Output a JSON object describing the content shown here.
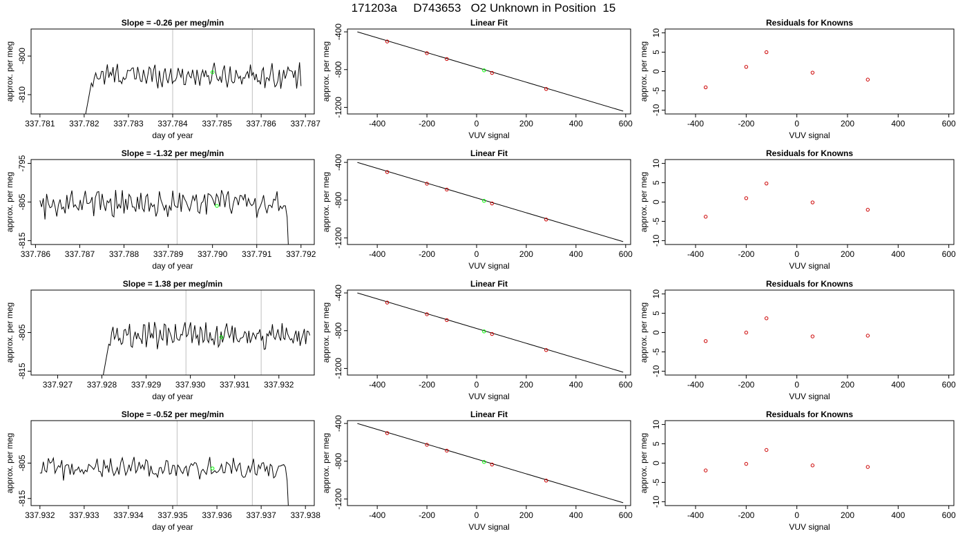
{
  "title": "171203a     D743653   O2 Unknown in Position  15",
  "colors": {
    "trace": "#000000",
    "vline": "#bfbfbf",
    "green": "#00ff00",
    "red": "#cc0000"
  },
  "chart_data": [
    {
      "type": "line",
      "row": 0,
      "title": "Slope =  -0.26  per meg/min",
      "xlabel": "day of year",
      "ylabel": "approx. per meg",
      "xlim": [
        337.7808,
        337.7872
      ],
      "xticks": [
        337.781,
        337.782,
        337.783,
        337.784,
        337.785,
        337.786,
        337.787
      ],
      "xtick_labels": [
        "337.781",
        "337.782",
        "337.783",
        "337.784",
        "337.785",
        "337.786",
        "337.787"
      ],
      "ylim": [
        -815,
        -793
      ],
      "yticks": [
        -810,
        -800
      ],
      "ytick_labels": [
        "-810",
        "-800"
      ],
      "vlines": [
        337.784,
        337.7858
      ],
      "x_start": 337.782,
      "x_end": 337.7869,
      "baseline": -805,
      "amplitude": 2.5,
      "entry": "drop-in",
      "green_point": {
        "x": 337.7849,
        "y": -804.2
      }
    },
    {
      "type": "scatter",
      "row": 0,
      "title": "Linear Fit",
      "xlabel": "VUV signal",
      "ylabel": "approx. per meg",
      "xlim": [
        -520,
        620
      ],
      "xticks": [
        -400,
        -200,
        0,
        200,
        400,
        600
      ],
      "xtick_labels": [
        "-400",
        "-200",
        "0",
        "200",
        "400",
        "600"
      ],
      "ylim": [
        -1270,
        -370
      ],
      "yticks": [
        -1200,
        -800,
        -400
      ],
      "ytick_labels": [
        "-1200",
        "-800",
        "-400"
      ],
      "fit_line": {
        "x": [
          -480,
          590
        ],
        "y": [
          -400,
          -1240
        ]
      },
      "points": [
        {
          "x": -360,
          "y": -502
        },
        {
          "x": -200,
          "y": -626
        },
        {
          "x": -120,
          "y": -688
        },
        {
          "x": 62,
          "y": -835
        },
        {
          "x": 280,
          "y": -1005
        }
      ],
      "green_point": {
        "x": 30,
        "y": -808
      }
    },
    {
      "type": "scatter",
      "row": 0,
      "title": "Residuals for Knowns",
      "xlabel": "VUV signal",
      "ylabel": "approx. per meg",
      "xlim": [
        -520,
        620
      ],
      "xticks": [
        -400,
        -200,
        0,
        200,
        400,
        600
      ],
      "xtick_labels": [
        "-400",
        "-200",
        "0",
        "200",
        "400",
        "600"
      ],
      "ylim": [
        -11,
        11
      ],
      "yticks": [
        -10,
        -5,
        0,
        5,
        10
      ],
      "ytick_labels": [
        "-10",
        "-5",
        "0",
        "5",
        "10"
      ],
      "points": [
        {
          "x": -360,
          "y": -4.1
        },
        {
          "x": -200,
          "y": 1.2
        },
        {
          "x": -120,
          "y": 5.0
        },
        {
          "x": 62,
          "y": -0.3
        },
        {
          "x": 280,
          "y": -2.1
        }
      ]
    },
    {
      "type": "line",
      "row": 1,
      "title": "Slope =  -1.32  per meg/min",
      "xlabel": "day of year",
      "ylabel": "approx. per meg",
      "xlim": [
        337.7859,
        337.7923
      ],
      "xticks": [
        337.786,
        337.787,
        337.788,
        337.789,
        337.79,
        337.791,
        337.792
      ],
      "xtick_labels": [
        "337.786",
        "337.787",
        "337.788",
        "337.789",
        "337.790",
        "337.791",
        "337.792"
      ],
      "ylim": [
        -816,
        -794
      ],
      "yticks": [
        -815,
        -805,
        -795
      ],
      "ytick_labels": [
        "-815",
        "-805",
        "-795"
      ],
      "vlines": [
        337.7892,
        337.791
      ],
      "x_start": 337.7861,
      "x_end": 337.7918,
      "baseline": -805.5,
      "amplitude": 3.0,
      "entry": "flat-drop",
      "green_point": {
        "x": 337.7901,
        "y": -806
      }
    },
    {
      "type": "scatter",
      "row": 1,
      "title": "Linear Fit",
      "xlabel": "VUV signal",
      "ylabel": "approx. per meg",
      "xlim": [
        -520,
        620
      ],
      "xticks": [
        -400,
        -200,
        0,
        200,
        400,
        600
      ],
      "xtick_labels": [
        "-400",
        "-200",
        "0",
        "200",
        "400",
        "600"
      ],
      "ylim": [
        -1270,
        -370
      ],
      "yticks": [
        -1200,
        -800,
        -400
      ],
      "ytick_labels": [
        "-1200",
        "-800",
        "-400"
      ],
      "fit_line": {
        "x": [
          -480,
          590
        ],
        "y": [
          -400,
          -1240
        ]
      },
      "points": [
        {
          "x": -360,
          "y": -502
        },
        {
          "x": -200,
          "y": -626
        },
        {
          "x": -120,
          "y": -688
        },
        {
          "x": 62,
          "y": -835
        },
        {
          "x": 280,
          "y": -1005
        }
      ],
      "green_point": {
        "x": 30,
        "y": -808
      }
    },
    {
      "type": "scatter",
      "row": 1,
      "title": "Residuals for Knowns",
      "xlabel": "VUV signal",
      "ylabel": "approx. per meg",
      "xlim": [
        -520,
        620
      ],
      "xticks": [
        -400,
        -200,
        0,
        200,
        400,
        600
      ],
      "xtick_labels": [
        "-400",
        "-200",
        "0",
        "200",
        "400",
        "600"
      ],
      "ylim": [
        -11,
        11
      ],
      "yticks": [
        -10,
        -5,
        0,
        5,
        10
      ],
      "ytick_labels": [
        "-10",
        "-5",
        "0",
        "5",
        "10"
      ],
      "points": [
        {
          "x": -360,
          "y": -3.8
        },
        {
          "x": -200,
          "y": 1.0
        },
        {
          "x": -120,
          "y": 4.8
        },
        {
          "x": 62,
          "y": -0.1
        },
        {
          "x": 280,
          "y": -2.0
        }
      ]
    },
    {
      "type": "line",
      "row": 2,
      "title": "Slope =  1.38  per meg/min",
      "xlabel": "day of year",
      "ylabel": "approx. per meg",
      "xlim": [
        337.9264,
        337.9328
      ],
      "xticks": [
        337.927,
        337.928,
        337.929,
        337.93,
        337.931,
        337.932
      ],
      "xtick_labels": [
        "337.927",
        "337.928",
        "337.929",
        "337.930",
        "337.931",
        "337.932"
      ],
      "ylim": [
        -816,
        -794
      ],
      "yticks": [
        -815,
        -805
      ],
      "ytick_labels": [
        "-815",
        "-805"
      ],
      "vlines": [
        337.9299,
        337.9316
      ],
      "x_start": 337.928,
      "x_end": 337.9327,
      "baseline": -806,
      "amplitude": 2.8,
      "entry": "drop-in",
      "green_point": {
        "x": 337.9307,
        "y": -806.2
      }
    },
    {
      "type": "scatter",
      "row": 2,
      "title": "Linear Fit",
      "xlabel": "VUV signal",
      "ylabel": "approx. per meg",
      "xlim": [
        -520,
        620
      ],
      "xticks": [
        -400,
        -200,
        0,
        200,
        400,
        600
      ],
      "xtick_labels": [
        "-400",
        "-200",
        "0",
        "200",
        "400",
        "600"
      ],
      "ylim": [
        -1270,
        -370
      ],
      "yticks": [
        -1200,
        -800,
        -400
      ],
      "ytick_labels": [
        "-1200",
        "-800",
        "-400"
      ],
      "fit_line": {
        "x": [
          -480,
          590
        ],
        "y": [
          -400,
          -1240
        ]
      },
      "points": [
        {
          "x": -360,
          "y": -502
        },
        {
          "x": -200,
          "y": -626
        },
        {
          "x": -120,
          "y": -688
        },
        {
          "x": 62,
          "y": -835
        },
        {
          "x": 280,
          "y": -1005
        }
      ],
      "green_point": {
        "x": 30,
        "y": -808
      }
    },
    {
      "type": "scatter",
      "row": 2,
      "title": "Residuals for Knowns",
      "xlabel": "VUV signal",
      "ylabel": "approx. per meg",
      "xlim": [
        -520,
        620
      ],
      "xticks": [
        -400,
        -200,
        0,
        200,
        400,
        600
      ],
      "xtick_labels": [
        "-400",
        "-200",
        "0",
        "200",
        "400",
        "600"
      ],
      "ylim": [
        -11,
        11
      ],
      "yticks": [
        -10,
        -5,
        0,
        5,
        10
      ],
      "ytick_labels": [
        "-10",
        "-5",
        "0",
        "5",
        "10"
      ],
      "points": [
        {
          "x": -360,
          "y": -2.2
        },
        {
          "x": -200,
          "y": 0.0
        },
        {
          "x": -120,
          "y": 3.7
        },
        {
          "x": 62,
          "y": -1.0
        },
        {
          "x": 280,
          "y": -0.8
        }
      ]
    },
    {
      "type": "line",
      "row": 3,
      "title": "Slope =  -0.52  per meg/min",
      "xlabel": "day of year",
      "ylabel": "approx. per meg",
      "xlim": [
        337.9318,
        337.9382
      ],
      "xticks": [
        337.932,
        337.933,
        337.934,
        337.935,
        337.936,
        337.937,
        337.938
      ],
      "xtick_labels": [
        "337.932",
        "337.933",
        "337.934",
        "337.935",
        "337.936",
        "337.937",
        "337.938"
      ],
      "ylim": [
        -817,
        -793
      ],
      "yticks": [
        -815,
        -805
      ],
      "ytick_labels": [
        "-815",
        "-805"
      ],
      "vlines": [
        337.9351,
        337.9368
      ],
      "x_start": 337.932,
      "x_end": 337.9377,
      "baseline": -806.5,
      "amplitude": 2.5,
      "entry": "flat-drop",
      "green_point": {
        "x": 337.9359,
        "y": -806.5
      }
    },
    {
      "type": "scatter",
      "row": 3,
      "title": "Linear Fit",
      "xlabel": "VUV signal",
      "ylabel": "approx. per meg",
      "xlim": [
        -520,
        620
      ],
      "xticks": [
        -400,
        -200,
        0,
        200,
        400,
        600
      ],
      "xtick_labels": [
        "-400",
        "-200",
        "0",
        "200",
        "400",
        "600"
      ],
      "ylim": [
        -1270,
        -370
      ],
      "yticks": [
        -1200,
        -800,
        -400
      ],
      "ytick_labels": [
        "-1200",
        "-800",
        "-400"
      ],
      "fit_line": {
        "x": [
          -480,
          590
        ],
        "y": [
          -400,
          -1240
        ]
      },
      "points": [
        {
          "x": -360,
          "y": -502
        },
        {
          "x": -200,
          "y": -626
        },
        {
          "x": -120,
          "y": -688
        },
        {
          "x": 62,
          "y": -835
        },
        {
          "x": 280,
          "y": -1005
        }
      ],
      "green_point": {
        "x": 30,
        "y": -808
      }
    },
    {
      "type": "scatter",
      "row": 3,
      "title": "Residuals for Knowns",
      "xlabel": "VUV signal",
      "ylabel": "approx. per meg",
      "xlim": [
        -520,
        620
      ],
      "xticks": [
        -400,
        -200,
        0,
        200,
        400,
        600
      ],
      "xtick_labels": [
        "-400",
        "-200",
        "0",
        "200",
        "400",
        "600"
      ],
      "ylim": [
        -11,
        11
      ],
      "yticks": [
        -10,
        -5,
        0,
        5,
        10
      ],
      "ytick_labels": [
        "-10",
        "-5",
        "0",
        "5",
        "10"
      ],
      "points": [
        {
          "x": -360,
          "y": -1.9
        },
        {
          "x": -200,
          "y": -0.2
        },
        {
          "x": -120,
          "y": 3.4
        },
        {
          "x": 62,
          "y": -0.6
        },
        {
          "x": 280,
          "y": -1.0
        }
      ]
    }
  ]
}
